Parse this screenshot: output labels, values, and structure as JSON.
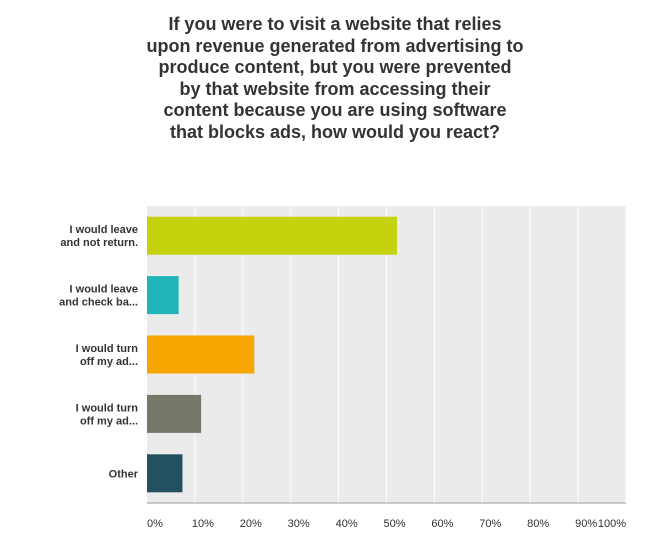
{
  "chart_data": {
    "type": "bar",
    "orientation": "horizontal",
    "title": "If you were to visit a website that relies upon revenue generated from advertising to produce content, but you were prevented by that website from accessing their content because you are using software that blocks ads, how would you react?",
    "title_lines": [
      "If you were to visit a website that relies",
      "upon revenue generated from advertising to",
      "produce content, but you were prevented",
      "by that website from accessing their",
      "content because you are using software",
      "that blocks ads, how would you react?"
    ],
    "categories": [
      [
        "I would leave",
        "and not return."
      ],
      [
        "I would leave",
        "and check ba..."
      ],
      [
        "I would turn",
        "off my ad..."
      ],
      [
        "I would turn",
        "off my ad..."
      ],
      [
        "Other"
      ]
    ],
    "values": [
      52.2,
      6.6,
      22.4,
      11.3,
      7.4
    ],
    "colors": [
      "#c5d20e",
      "#22b5b8",
      "#f7a600",
      "#77786a",
      "#22505f"
    ],
    "xlim": [
      0,
      100
    ],
    "xticks": [
      "0%",
      "10%",
      "20%",
      "30%",
      "40%",
      "50%",
      "60%",
      "70%",
      "80%",
      "90%",
      "100%"
    ],
    "grid": true,
    "plot_background": "#ebebeb",
    "grid_color": "#ffffff"
  }
}
